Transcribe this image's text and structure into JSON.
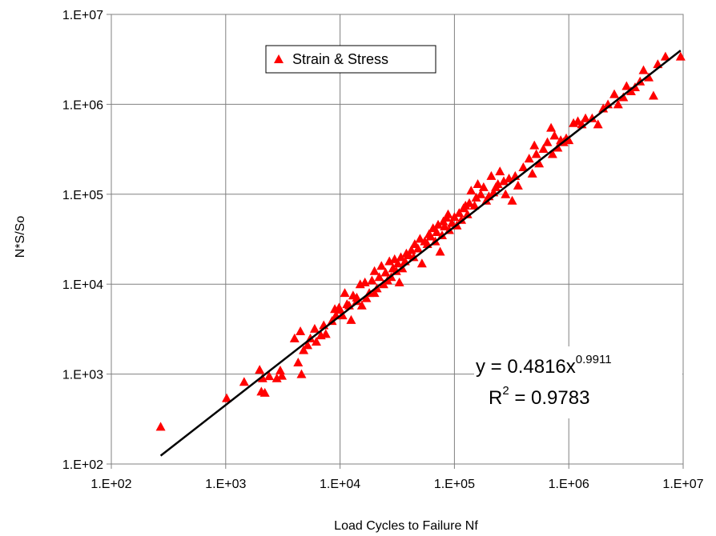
{
  "chart_data": {
    "type": "scatter",
    "xlabel": "Load Cycles to Failure Nf",
    "ylabel": "N*S/So",
    "x_scale": "log",
    "y_scale": "log",
    "xlim": [
      100,
      10000000
    ],
    "ylim": [
      100,
      10000000
    ],
    "x_ticks": [
      "1.E+02",
      "1.E+03",
      "1.E+04",
      "1.E+05",
      "1.E+06",
      "1.E+07"
    ],
    "y_ticks": [
      "1.E+02",
      "1.E+03",
      "1.E+04",
      "1.E+05",
      "1.E+06",
      "1.E+07"
    ],
    "grid": true,
    "legend": {
      "placement": "top-center",
      "entries": [
        "Strain & Stress"
      ]
    },
    "series": [
      {
        "name": "Strain & Stress",
        "marker": "triangle",
        "color": "#ff0000",
        "points": [
          [
            270,
            260
          ],
          [
            1020,
            540
          ],
          [
            1450,
            820
          ],
          [
            1980,
            1120
          ],
          [
            2050,
            640
          ],
          [
            2200,
            620
          ],
          [
            2100,
            900
          ],
          [
            2400,
            950
          ],
          [
            2800,
            900
          ],
          [
            3000,
            1100
          ],
          [
            3100,
            960
          ],
          [
            4000,
            2500
          ],
          [
            4300,
            1350
          ],
          [
            4500,
            3000
          ],
          [
            4600,
            1000
          ],
          [
            4800,
            1850
          ],
          [
            5200,
            2100
          ],
          [
            5500,
            2500
          ],
          [
            6000,
            3200
          ],
          [
            6200,
            2300
          ],
          [
            6800,
            2700
          ],
          [
            7500,
            2800
          ],
          [
            7200,
            3500
          ],
          [
            8500,
            3900
          ],
          [
            9000,
            5300
          ],
          [
            9200,
            4500
          ],
          [
            9800,
            5500
          ],
          [
            10000,
            5200
          ],
          [
            10500,
            4500
          ],
          [
            11000,
            8000
          ],
          [
            11500,
            6000
          ],
          [
            12000,
            5800
          ],
          [
            12500,
            4000
          ],
          [
            13000,
            7500
          ],
          [
            14000,
            6500
          ],
          [
            14000,
            7100
          ],
          [
            15000,
            10000
          ],
          [
            15500,
            5800
          ],
          [
            16500,
            10500
          ],
          [
            17000,
            7000
          ],
          [
            18000,
            8000
          ],
          [
            19000,
            11000
          ],
          [
            20000,
            8000
          ],
          [
            20000,
            14000
          ],
          [
            21000,
            9000
          ],
          [
            22000,
            12000
          ],
          [
            23000,
            16000
          ],
          [
            24000,
            10000
          ],
          [
            25000,
            13500
          ],
          [
            26000,
            11000
          ],
          [
            27000,
            18000
          ],
          [
            28000,
            12000
          ],
          [
            29000,
            15000
          ],
          [
            30000,
            19000
          ],
          [
            31000,
            14000
          ],
          [
            32000,
            17000
          ],
          [
            33000,
            10500
          ],
          [
            34000,
            20000
          ],
          [
            35000,
            15000
          ],
          [
            37000,
            18000
          ],
          [
            38000,
            22000
          ],
          [
            40000,
            21000
          ],
          [
            42000,
            24000
          ],
          [
            44000,
            20000
          ],
          [
            45000,
            28000
          ],
          [
            48000,
            25000
          ],
          [
            50000,
            32000
          ],
          [
            52000,
            17000
          ],
          [
            55000,
            30000
          ],
          [
            58000,
            28000
          ],
          [
            60000,
            36000
          ],
          [
            62000,
            34000
          ],
          [
            65000,
            42000
          ],
          [
            68000,
            30000
          ],
          [
            70000,
            38000
          ],
          [
            72000,
            46000
          ],
          [
            75000,
            23000
          ],
          [
            78000,
            35000
          ],
          [
            80000,
            50000
          ],
          [
            82000,
            44000
          ],
          [
            85000,
            55000
          ],
          [
            88000,
            60000
          ],
          [
            90000,
            40000
          ],
          [
            95000,
            48000
          ],
          [
            100000,
            56000
          ],
          [
            105000,
            45000
          ],
          [
            110000,
            62000
          ],
          [
            115000,
            52000
          ],
          [
            120000,
            70000
          ],
          [
            125000,
            75000
          ],
          [
            130000,
            60000
          ],
          [
            135000,
            80000
          ],
          [
            140000,
            110000
          ],
          [
            150000,
            75000
          ],
          [
            155000,
            92000
          ],
          [
            160000,
            130000
          ],
          [
            170000,
            100000
          ],
          [
            180000,
            120000
          ],
          [
            190000,
            85000
          ],
          [
            200000,
            95000
          ],
          [
            210000,
            160000
          ],
          [
            220000,
            105000
          ],
          [
            230000,
            120000
          ],
          [
            240000,
            130000
          ],
          [
            250000,
            180000
          ],
          [
            270000,
            140000
          ],
          [
            280000,
            100000
          ],
          [
            300000,
            150000
          ],
          [
            320000,
            85000
          ],
          [
            340000,
            160000
          ],
          [
            360000,
            125000
          ],
          [
            400000,
            200000
          ],
          [
            450000,
            250000
          ],
          [
            480000,
            170000
          ],
          [
            500000,
            350000
          ],
          [
            520000,
            280000
          ],
          [
            550000,
            220000
          ],
          [
            600000,
            320000
          ],
          [
            650000,
            380000
          ],
          [
            700000,
            550000
          ],
          [
            720000,
            280000
          ],
          [
            750000,
            450000
          ],
          [
            800000,
            330000
          ],
          [
            850000,
            400000
          ],
          [
            900000,
            380000
          ],
          [
            950000,
            420000
          ],
          [
            1000000,
            400000
          ],
          [
            1100000,
            620000
          ],
          [
            1200000,
            650000
          ],
          [
            1300000,
            600000
          ],
          [
            1400000,
            700000
          ],
          [
            1600000,
            700000
          ],
          [
            1800000,
            600000
          ],
          [
            2000000,
            900000
          ],
          [
            2200000,
            1000000
          ],
          [
            2500000,
            1300000
          ],
          [
            2700000,
            1000000
          ],
          [
            3000000,
            1200000
          ],
          [
            3200000,
            1600000
          ],
          [
            3500000,
            1400000
          ],
          [
            3800000,
            1550000
          ],
          [
            4200000,
            1800000
          ],
          [
            4500000,
            2400000
          ],
          [
            5000000,
            2000000
          ],
          [
            5500000,
            1250000
          ],
          [
            6000000,
            2800000
          ],
          [
            7000000,
            3400000
          ],
          [
            9500000,
            3400000
          ]
        ]
      }
    ],
    "trendline": {
      "equation_prefix": "y = 0.4816x",
      "equation_exponent": "0.9911",
      "r2_prefix": "R",
      "r2_exponent": "2",
      "r2_suffix": " = 0.9783",
      "coefficient": 0.4816,
      "exponent": 0.9911,
      "x_range": [
        270,
        9500000
      ]
    },
    "colors": {
      "marker": "#ff0000",
      "trendline": "#000000",
      "grid": "#808080"
    }
  }
}
